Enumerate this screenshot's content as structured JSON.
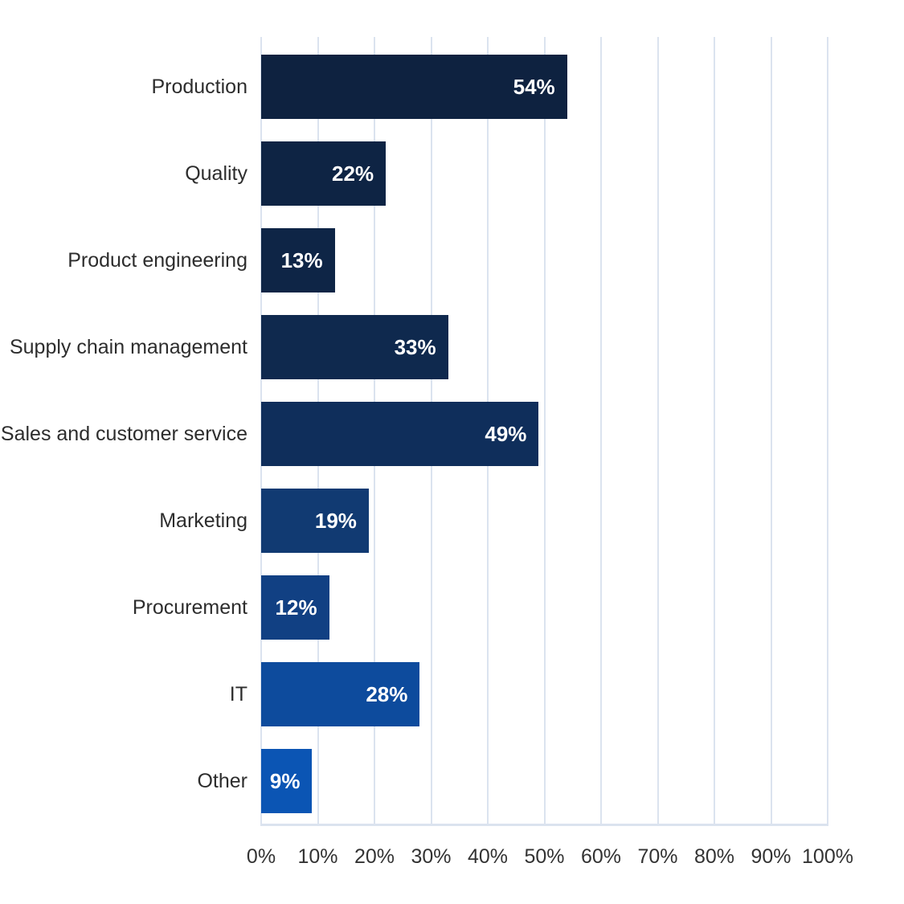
{
  "chart_data": {
    "type": "bar",
    "orientation": "horizontal",
    "title": "",
    "xlabel": "",
    "ylabel": "",
    "categories": [
      "Production",
      "Quality",
      "Product engineering",
      "Supply chain management",
      "Sales and customer service",
      "Marketing",
      "Procurement",
      "IT",
      "Other"
    ],
    "values": [
      54,
      22,
      13,
      33,
      49,
      19,
      12,
      28,
      9
    ],
    "value_labels": [
      "54%",
      "22%",
      "13%",
      "33%",
      "49%",
      "19%",
      "12%",
      "28%",
      "9%"
    ],
    "bar_colors": [
      "#0e2240",
      "#0e2444",
      "#0e2546",
      "#0f294e",
      "#0f2e5b",
      "#113a72",
      "#114083",
      "#0d4b9d",
      "#0b55b4"
    ],
    "xlim": [
      0,
      100
    ],
    "x_tick_labels": [
      "0%",
      "10%",
      "20%",
      "30%",
      "40%",
      "50%",
      "60%",
      "70%",
      "80%",
      "90%",
      "100%"
    ],
    "grid": true,
    "legend": false
  },
  "style": {
    "background_color": "#ffffff",
    "grid_color": "#dbe3ef",
    "axis_line_color": "#dbe3ef",
    "category_label_color": "#2d2d2d",
    "tick_label_color": "#333333",
    "value_label_color": "#ffffff"
  }
}
